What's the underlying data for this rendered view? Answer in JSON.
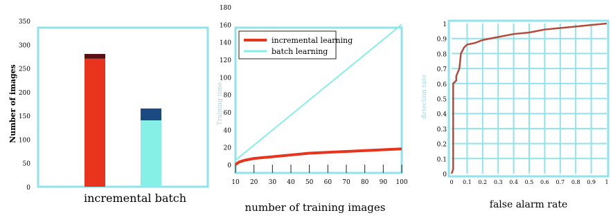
{
  "colors": {
    "frame": "#8fe3ea",
    "red": "#e8341c",
    "dark_red": "#5a1010",
    "cyan": "#86f0e6",
    "navy": "#1a4a80",
    "grid": "#8fe3ea",
    "roc": "#b54a3a",
    "axis_label": "#9fd8dd"
  },
  "chart_data": [
    {
      "type": "bar",
      "categories": [
        "incremental",
        "batch"
      ],
      "xlabel": "incremental batch",
      "ylabel": "Number of images",
      "ytick_labels": [
        "0",
        "50",
        "100",
        "150",
        "200",
        "250",
        "300",
        "350"
      ],
      "ylim": [
        0,
        350
      ],
      "series": [
        {
          "values": [
            270,
            140
          ],
          "colors": [
            "#e8341c",
            "#86f0e6"
          ]
        },
        {
          "values": [
            10,
            25
          ],
          "colors": [
            "#5a1010",
            "#1a4a80"
          ]
        }
      ]
    },
    {
      "type": "line",
      "xlabel": "number of training images",
      "ylabel": "Training time",
      "x_tick_labels": [
        "10",
        "20",
        "30",
        "40",
        "50",
        "60",
        "70",
        "80",
        "90",
        "100"
      ],
      "y_tick_labels": [
        "0",
        "20",
        "40",
        "60",
        "80",
        "100",
        "120",
        "140",
        "160",
        "180"
      ],
      "xlim": [
        10,
        100
      ],
      "ylim": [
        0,
        180
      ],
      "legend_position": "top-left",
      "series": [
        {
          "name": "incremental learning",
          "color": "#e8341c",
          "x": [
            10,
            12,
            15,
            20,
            30,
            40,
            50,
            60,
            70,
            80,
            90,
            100
          ],
          "y": [
            0,
            3,
            5,
            7,
            9,
            11,
            13,
            14,
            15,
            16,
            17,
            18
          ]
        },
        {
          "name": "batch learning",
          "color": "#86f0e6",
          "x": [
            10,
            100
          ],
          "y": [
            5,
            160
          ]
        }
      ]
    },
    {
      "type": "line",
      "xlabel": "false alarm rate",
      "ylabel": "detection rate",
      "x_tick_labels": [
        "0",
        "0.1",
        "0.2",
        "0.3",
        "0.4",
        "0.5",
        "0.6",
        "0.7",
        "0.8",
        "0.9",
        "1"
      ],
      "y_tick_labels": [
        "0",
        "0.1",
        "0.2",
        "0.3",
        "0.4",
        "0.5",
        "0.6",
        "0.7",
        "0.8",
        "0.9",
        "1"
      ],
      "xlim": [
        0,
        1
      ],
      "ylim": [
        0,
        1
      ],
      "grid": true,
      "series": [
        {
          "color": "#b54a3a",
          "x": [
            0,
            0.01,
            0.01,
            0.03,
            0.03,
            0.05,
            0.06,
            0.08,
            0.1,
            0.15,
            0.2,
            0.3,
            0.4,
            0.5,
            0.55,
            0.6,
            0.7,
            0.8,
            0.9,
            1.0
          ],
          "y": [
            0,
            0.03,
            0.6,
            0.62,
            0.65,
            0.7,
            0.8,
            0.84,
            0.86,
            0.87,
            0.89,
            0.91,
            0.93,
            0.94,
            0.95,
            0.96,
            0.97,
            0.98,
            0.99,
            1.0
          ]
        }
      ]
    }
  ]
}
